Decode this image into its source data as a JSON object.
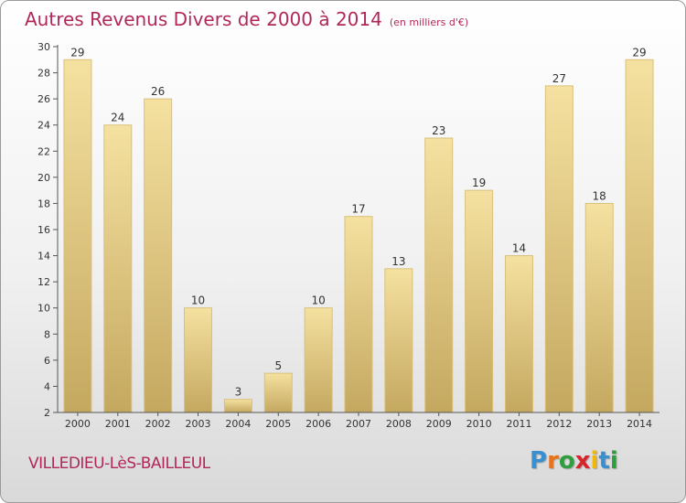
{
  "header": {
    "title": "Autres Revenus Divers de 2000 à 2014",
    "unit": "(en milliers d'€)"
  },
  "footer": {
    "commune": "VILLEDIEU-LèS-BAILLEUL",
    "logo_text": "Proxiti",
    "logo_colors": [
      "#3a8fd1",
      "#e8731c",
      "#2e9e3f",
      "#d6262b",
      "#f2b705",
      "#3a8fd1",
      "#2e9e3f"
    ]
  },
  "chart_data": {
    "type": "bar",
    "title": "Autres Revenus Divers de 2000 à 2014",
    "xlabel": "",
    "ylabel": "",
    "categories": [
      "2000",
      "2001",
      "2002",
      "2003",
      "2004",
      "2005",
      "2006",
      "2007",
      "2008",
      "2009",
      "2010",
      "2011",
      "2012",
      "2013",
      "2014"
    ],
    "values": [
      29,
      24,
      26,
      10,
      3,
      5,
      10,
      17,
      13,
      23,
      19,
      14,
      27,
      18,
      29
    ],
    "ylim": [
      2,
      30
    ],
    "yticks": [
      2,
      4,
      6,
      8,
      10,
      12,
      14,
      16,
      18,
      20,
      22,
      24,
      26,
      28,
      30
    ],
    "grid": false,
    "colors": {
      "bar_top": "#f5e1a0",
      "bar_bottom": "#c4a860",
      "bar_edge": "#d9c07a",
      "axis": "#555555",
      "text": "#333333"
    }
  }
}
